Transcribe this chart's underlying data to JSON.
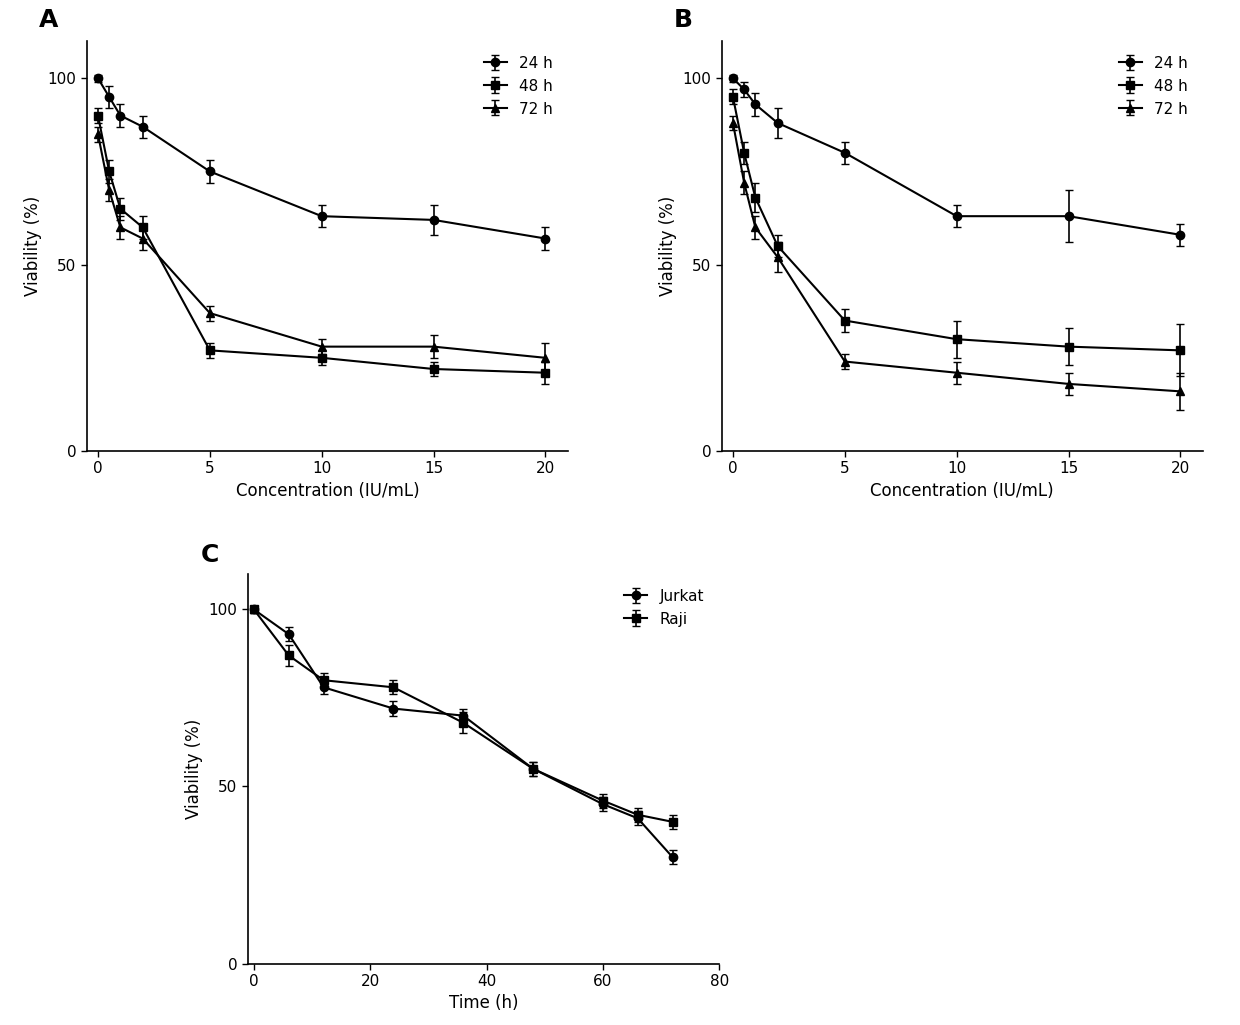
{
  "panel_A": {
    "label": "A",
    "xlabel": "Concentration (IU/mL)",
    "ylabel": "Viability (%)",
    "x": [
      0,
      0.5,
      1,
      2,
      5,
      10,
      15,
      20
    ],
    "series": {
      "24 h": {
        "y": [
          100,
          95,
          90,
          87,
          75,
          63,
          62,
          57
        ],
        "yerr": [
          1,
          3,
          3,
          3,
          3,
          3,
          4,
          3
        ],
        "marker": "o"
      },
      "48 h": {
        "y": [
          90,
          75,
          65,
          60,
          27,
          25,
          22,
          21
        ],
        "yerr": [
          2,
          3,
          3,
          3,
          2,
          2,
          2,
          3
        ],
        "marker": "s"
      },
      "72 h": {
        "y": [
          85,
          70,
          60,
          57,
          37,
          28,
          28,
          25
        ],
        "yerr": [
          2,
          3,
          3,
          3,
          2,
          2,
          3,
          4
        ],
        "marker": "^"
      }
    },
    "xlim": [
      -0.5,
      21
    ],
    "ylim": [
      0,
      110
    ],
    "xticks": [
      0,
      5,
      10,
      15,
      20
    ],
    "yticks": [
      0,
      50,
      100
    ]
  },
  "panel_B": {
    "label": "B",
    "xlabel": "Concentration (IU/mL)",
    "ylabel": "Viability (%)",
    "x": [
      0,
      0.5,
      1,
      2,
      5,
      10,
      15,
      20
    ],
    "series": {
      "24 h": {
        "y": [
          100,
          97,
          93,
          88,
          80,
          63,
          63,
          58
        ],
        "yerr": [
          1,
          2,
          3,
          4,
          3,
          3,
          7,
          3
        ],
        "marker": "o"
      },
      "48 h": {
        "y": [
          95,
          80,
          68,
          55,
          35,
          30,
          28,
          27
        ],
        "yerr": [
          2,
          3,
          4,
          3,
          3,
          5,
          5,
          7
        ],
        "marker": "s"
      },
      "72 h": {
        "y": [
          88,
          72,
          60,
          52,
          24,
          21,
          18,
          16
        ],
        "yerr": [
          2,
          3,
          3,
          4,
          2,
          3,
          3,
          5
        ],
        "marker": "^"
      }
    },
    "xlim": [
      -0.5,
      21
    ],
    "ylim": [
      0,
      110
    ],
    "xticks": [
      0,
      5,
      10,
      15,
      20
    ],
    "yticks": [
      0,
      50,
      100
    ]
  },
  "panel_C": {
    "label": "C",
    "xlabel": "Time (h)",
    "ylabel": "Viability (%)",
    "x": [
      0,
      6,
      12,
      24,
      36,
      48,
      60,
      66,
      72
    ],
    "series": {
      "Jurkat": {
        "y": [
          100,
          93,
          78,
          72,
          70,
          55,
          45,
          41,
          30
        ],
        "yerr": [
          1,
          2,
          2,
          2,
          2,
          2,
          2,
          2,
          2
        ],
        "marker": "o"
      },
      "Raji": {
        "y": [
          100,
          87,
          80,
          78,
          68,
          55,
          46,
          42,
          40
        ],
        "yerr": [
          1,
          3,
          2,
          2,
          3,
          2,
          2,
          2,
          2
        ],
        "marker": "s"
      }
    },
    "xlim": [
      -1,
      78
    ],
    "ylim": [
      0,
      110
    ],
    "xticks": [
      0,
      20,
      40,
      60,
      80
    ],
    "yticks": [
      0,
      50,
      100
    ]
  },
  "line_color": "#000000",
  "marker_size": 6,
  "line_width": 1.5,
  "capsize": 3,
  "elinewidth": 1.2,
  "legend_fontsize": 11,
  "tick_fontsize": 11,
  "label_fontsize": 12,
  "panel_label_fontsize": 18
}
